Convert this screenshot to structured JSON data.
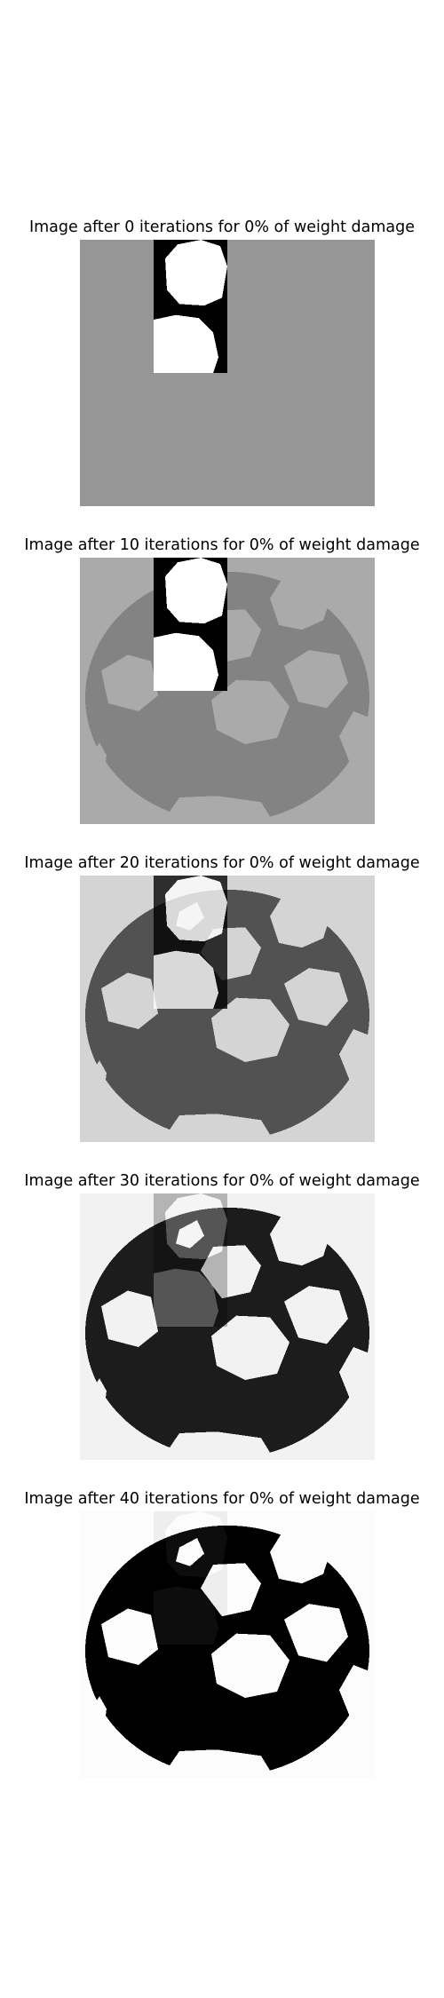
{
  "panels": [
    {
      "title": "Image after 0 iterations for 0% of weight damage",
      "background": "#969696",
      "ball": null,
      "patch_alpha": 1.0
    },
    {
      "title": "Image after 10 iterations for 0% of weight damage",
      "background": "#aaaaaa",
      "ball": "#838383",
      "patch_alpha": 1.0
    },
    {
      "title": "Image after 20 iterations for 0% of weight damage",
      "background": "#d4d4d4",
      "ball": "#525252",
      "patch_alpha": 0.78
    },
    {
      "title": "Image after 30 iterations for 0% of weight damage",
      "background": "#f2f2f2",
      "ball": "#1c1c1c",
      "patch_alpha": 0.25
    },
    {
      "title": "Image after 40 iterations for 0% of weight damage",
      "background": "#fcfcfc",
      "ball": "#000000",
      "patch_alpha": 0.05
    }
  ]
}
